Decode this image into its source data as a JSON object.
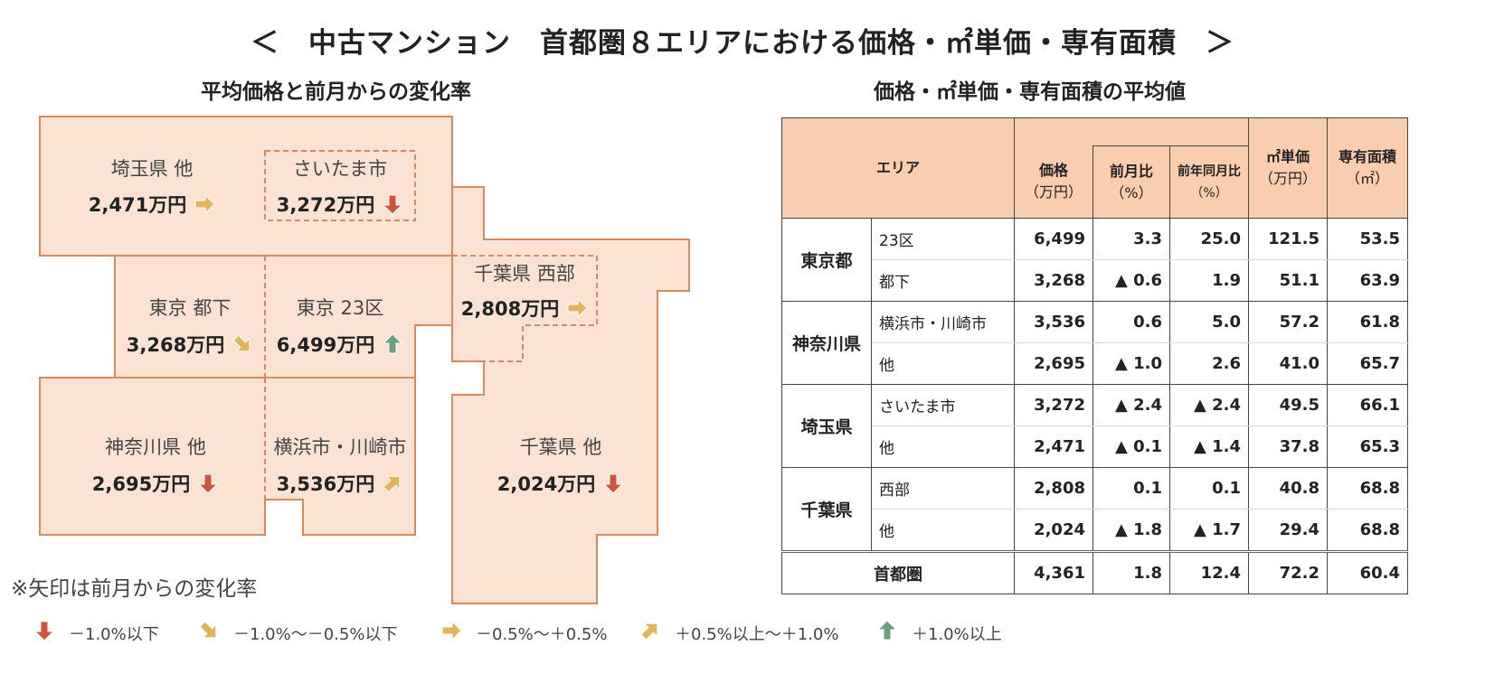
{
  "title": "＜　中古マンション　首都圏８エリアにおける価格・㎡単価・専有面積　＞",
  "map_subtitle": "平均価格と前月からの変化率",
  "table_subtitle": "価格・㎡単価・専有面積の平均値",
  "colors": {
    "region_fill": "#fbe2d2",
    "region_border": "#d98a5a",
    "table_header": "#f9cdb0",
    "arrow_down": "#d0533b",
    "arrow_down_slight": "#e2b35a",
    "arrow_flat": "#e2b35a",
    "arrow_up_slight": "#e2b35a",
    "arrow_up": "#6a9f83"
  },
  "map_regions": [
    {
      "id": "saitama-other",
      "name": "埼玉県 他",
      "price": "2,471万円",
      "arrow": "flat"
    },
    {
      "id": "saitama-city",
      "name": "さいたま市",
      "price": "3,272万円",
      "arrow": "down"
    },
    {
      "id": "tokyo-toka",
      "name": "東京 都下",
      "price": "3,268万円",
      "arrow": "down-slight"
    },
    {
      "id": "tokyo-23",
      "name": "東京 23区",
      "price": "6,499万円",
      "arrow": "up"
    },
    {
      "id": "chiba-west",
      "name": "千葉県 西部",
      "price": "2,808万円",
      "arrow": "flat"
    },
    {
      "id": "kanagawa-other",
      "name": "神奈川県 他",
      "price": "2,695万円",
      "arrow": "down"
    },
    {
      "id": "yokohama-kawasaki",
      "name": "横浜市・川崎市",
      "price": "3,536万円",
      "arrow": "up-slight"
    },
    {
      "id": "chiba-other",
      "name": "千葉県 他",
      "price": "2,024万円",
      "arrow": "down"
    }
  ],
  "footnote": "※矢印は前月からの変化率",
  "legend": [
    {
      "arrow": "down",
      "label": "－1.0%以下"
    },
    {
      "arrow": "down-slight",
      "label": "－1.0%～－0.5%以下"
    },
    {
      "arrow": "flat",
      "label": "－0.5%～＋0.5%"
    },
    {
      "arrow": "up-slight",
      "label": "＋0.5%以上～＋1.0%"
    },
    {
      "arrow": "up",
      "label": "＋1.0%以上"
    }
  ],
  "table": {
    "headers": {
      "area": "エリア",
      "price": "価格",
      "price_unit": "（万円）",
      "mom": "前月比",
      "mom_unit": "（%）",
      "yoy": "前年同月比",
      "yoy_unit": "（%）",
      "unit_price": "㎡単価",
      "unit_price_unit": "（万円）",
      "floor_area": "専有面積",
      "floor_area_unit": "（㎡）"
    },
    "groups": [
      {
        "pref": "東京都",
        "rows": [
          {
            "area": "23区",
            "price": "6,499",
            "mom": "3.3",
            "yoy": "25.0",
            "unit_price": "121.5",
            "floor_area": "53.5"
          },
          {
            "area": "都下",
            "price": "3,268",
            "mom": "▲ 0.6",
            "yoy": "1.9",
            "unit_price": "51.1",
            "floor_area": "63.9"
          }
        ]
      },
      {
        "pref": "神奈川県",
        "rows": [
          {
            "area": "横浜市・川崎市",
            "price": "3,536",
            "mom": "0.6",
            "yoy": "5.0",
            "unit_price": "57.2",
            "floor_area": "61.8"
          },
          {
            "area": "他",
            "price": "2,695",
            "mom": "▲ 1.0",
            "yoy": "2.6",
            "unit_price": "41.0",
            "floor_area": "65.7"
          }
        ]
      },
      {
        "pref": "埼玉県",
        "rows": [
          {
            "area": "さいたま市",
            "price": "3,272",
            "mom": "▲ 2.4",
            "yoy": "▲ 2.4",
            "unit_price": "49.5",
            "floor_area": "66.1"
          },
          {
            "area": "他",
            "price": "2,471",
            "mom": "▲ 0.1",
            "yoy": "▲ 1.4",
            "unit_price": "37.8",
            "floor_area": "65.3"
          }
        ]
      },
      {
        "pref": "千葉県",
        "rows": [
          {
            "area": "西部",
            "price": "2,808",
            "mom": "0.1",
            "yoy": "0.1",
            "unit_price": "40.8",
            "floor_area": "68.8"
          },
          {
            "area": "他",
            "price": "2,024",
            "mom": "▲ 1.8",
            "yoy": "▲ 1.7",
            "unit_price": "29.4",
            "floor_area": "68.8"
          }
        ]
      }
    ],
    "total": {
      "label": "首都圏",
      "price": "4,361",
      "mom": "1.8",
      "yoy": "12.4",
      "unit_price": "72.2",
      "floor_area": "60.4"
    }
  },
  "chart_data": {
    "type": "table",
    "title": "＜　中古マンション　首都圏８エリアにおける価格・㎡単価・専有面積　＞",
    "columns": [
      "エリア",
      "価格（万円）",
      "前月比（%）",
      "前年同月比（%）",
      "㎡単価（万円）",
      "専有面積（㎡）"
    ],
    "rows": [
      [
        "東京都 23区",
        6499,
        3.3,
        25.0,
        121.5,
        53.5
      ],
      [
        "東京都 都下",
        3268,
        -0.6,
        1.9,
        51.1,
        63.9
      ],
      [
        "神奈川県 横浜市・川崎市",
        3536,
        0.6,
        5.0,
        57.2,
        61.8
      ],
      [
        "神奈川県 他",
        2695,
        -1.0,
        2.6,
        41.0,
        65.7
      ],
      [
        "埼玉県 さいたま市",
        3272,
        -2.4,
        -2.4,
        49.5,
        66.1
      ],
      [
        "埼玉県 他",
        2471,
        -0.1,
        -1.4,
        37.8,
        65.3
      ],
      [
        "千葉県 西部",
        2808,
        0.1,
        0.1,
        40.8,
        68.8
      ],
      [
        "千葉県 他",
        2024,
        -1.8,
        -1.7,
        29.4,
        68.8
      ],
      [
        "首都圏",
        4361,
        1.8,
        12.4,
        72.2,
        60.4
      ]
    ]
  }
}
